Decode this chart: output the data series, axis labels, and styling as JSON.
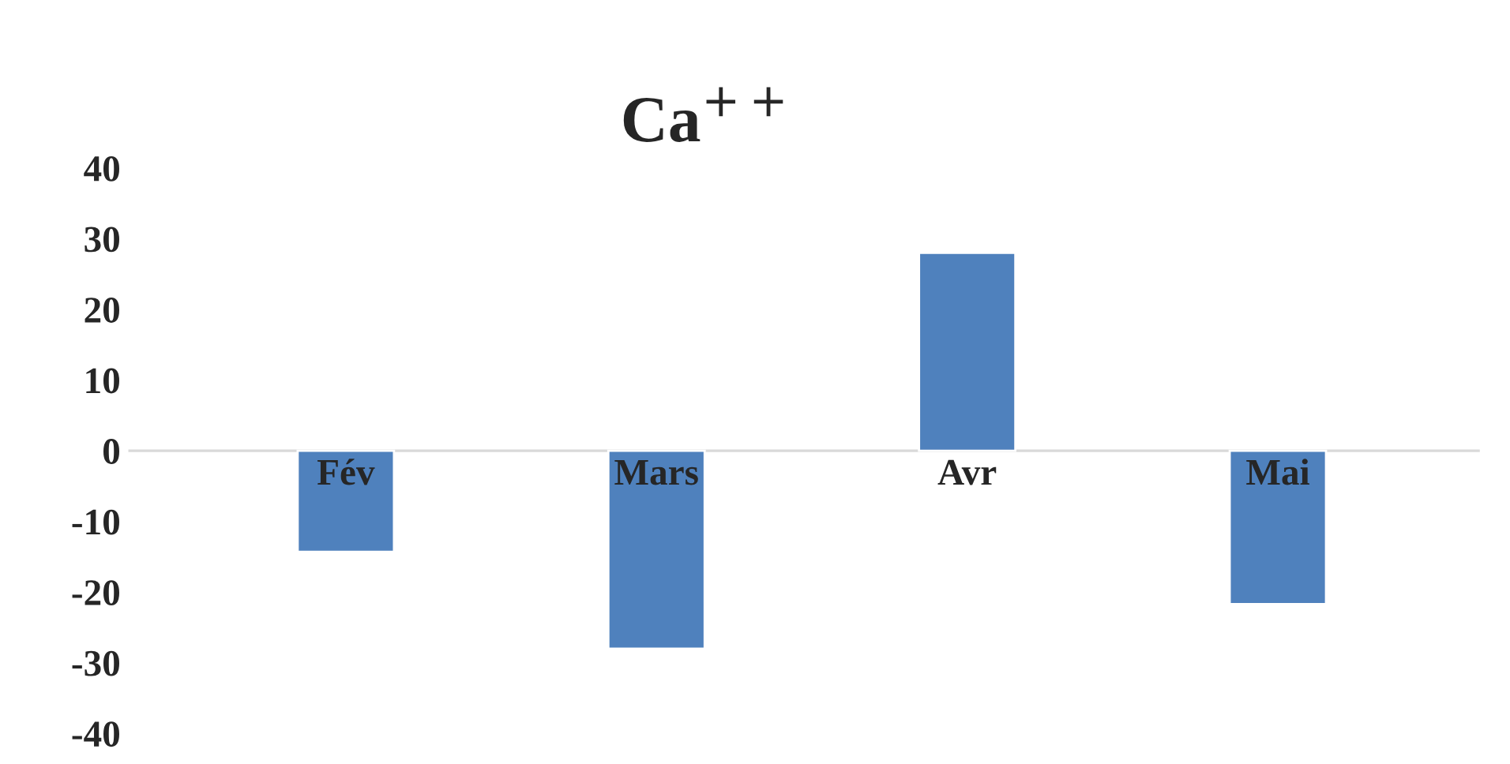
{
  "chart_data": {
    "type": "bar",
    "title": "Ca$^{++}$",
    "categories": [
      "Fév",
      "Mars",
      "Avr",
      "Mai"
    ],
    "values": [
      -14.3,
      -28,
      28,
      -21.7
    ],
    "color": "#4f81bd",
    "ylim": [
      -40,
      40
    ],
    "yticks": [
      -40,
      -30,
      -20,
      -10,
      0,
      10,
      20,
      30,
      40
    ],
    "grid": false,
    "legend": false
  }
}
